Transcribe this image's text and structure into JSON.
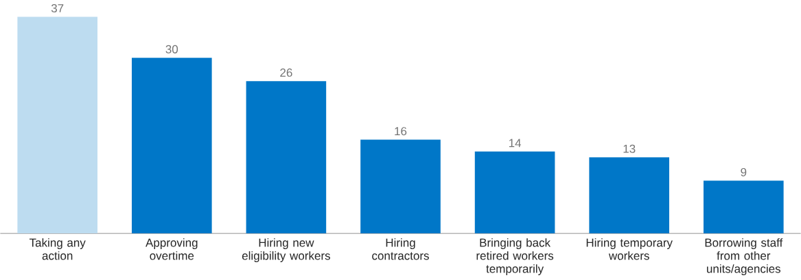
{
  "chart_data": {
    "type": "bar",
    "categories": [
      "Taking any action",
      "Approving overtime",
      "Hiring new eligibility workers",
      "Hiring contractors",
      "Bringing back retired workers temporarily",
      "Hiring temporary workers",
      "Borrowing staff from other units/agencies"
    ],
    "values": [
      37,
      30,
      26,
      16,
      14,
      13,
      9
    ],
    "value_labels": [
      "37",
      "30",
      "26",
      "16",
      "14",
      "13",
      "9"
    ],
    "colors": [
      "#bddcf0",
      "#0077c8",
      "#0077c8",
      "#0077c8",
      "#0077c8",
      "#0077c8",
      "#0077c8"
    ],
    "tick_labels": "x"
  }
}
